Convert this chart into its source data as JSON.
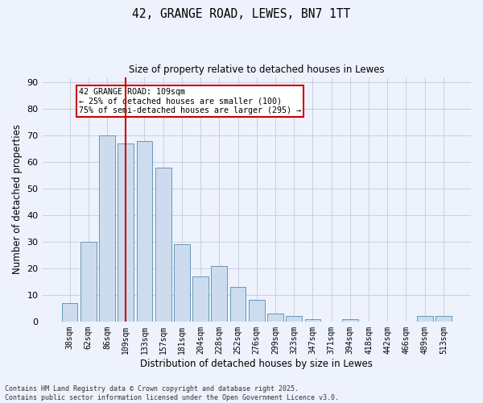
{
  "title_line1": "42, GRANGE ROAD, LEWES, BN7 1TT",
  "title_line2": "Size of property relative to detached houses in Lewes",
  "xlabel": "Distribution of detached houses by size in Lewes",
  "ylabel": "Number of detached properties",
  "categories": [
    "38sqm",
    "62sqm",
    "86sqm",
    "109sqm",
    "133sqm",
    "157sqm",
    "181sqm",
    "204sqm",
    "228sqm",
    "252sqm",
    "276sqm",
    "299sqm",
    "323sqm",
    "347sqm",
    "371sqm",
    "394sqm",
    "418sqm",
    "442sqm",
    "466sqm",
    "489sqm",
    "513sqm"
  ],
  "values": [
    7,
    30,
    70,
    67,
    68,
    58,
    29,
    17,
    21,
    13,
    8,
    3,
    2,
    1,
    0,
    1,
    0,
    0,
    0,
    2,
    2
  ],
  "bar_color": "#ccdcee",
  "bar_edge_color": "#6699bb",
  "vline_x_index": 3,
  "vline_color": "#cc0000",
  "ylim": [
    0,
    92
  ],
  "yticks": [
    0,
    10,
    20,
    30,
    40,
    50,
    60,
    70,
    80,
    90
  ],
  "annotation_text": "42 GRANGE ROAD: 109sqm\n← 25% of detached houses are smaller (100)\n75% of semi-detached houses are larger (295) →",
  "annotation_box_color": "#cc0000",
  "annotation_box_facecolor": "#ffffff",
  "footer_text": "Contains HM Land Registry data © Crown copyright and database right 2025.\nContains public sector information licensed under the Open Government Licence v3.0.",
  "bg_color": "#eef2fc",
  "grid_color": "#c8cfe0"
}
